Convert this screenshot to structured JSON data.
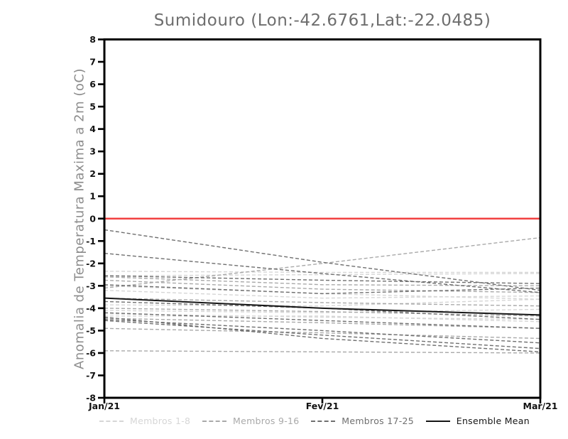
{
  "title": "Sumidouro (Lon:-42.6761,Lat:-22.0485)",
  "chart_data": {
    "type": "line",
    "title": "Sumidouro (Lon:-42.6761,Lat:-22.0485)",
    "xlabel": "",
    "ylabel": "Anomalia de Temperatura Maxima a 2m (oC)",
    "categories": [
      "Jan/21",
      "Fev/21",
      "Mar/21"
    ],
    "ylim": [
      -8,
      8
    ],
    "ytick_step": 1,
    "grid": "off",
    "legend_position": "bottom",
    "axis_color": "#000000",
    "tick_label_color": "#111111",
    "zero_line": {
      "value": 0,
      "color": "#f14040"
    },
    "groups": [
      {
        "name": "Membros 1-8",
        "color": "#d6d6d6",
        "style": "dashed",
        "members": [
          [
            -2.35,
            -2.4,
            -2.4
          ],
          [
            -2.55,
            -2.5,
            -2.45
          ],
          [
            -3.0,
            -3.35,
            -3.6
          ],
          [
            -3.2,
            -3.55,
            -3.45
          ],
          [
            -3.85,
            -3.9,
            -3.6
          ],
          [
            -4.1,
            -4.2,
            -4.05
          ],
          [
            -4.25,
            -4.4,
            -4.5
          ],
          [
            -4.35,
            -4.35,
            -4.6
          ]
        ]
      },
      {
        "name": "Membros 9-16",
        "color": "#a9a9a9",
        "style": "dashed",
        "members": [
          [
            -2.6,
            -2.95,
            -3.0
          ],
          [
            -2.75,
            -3.15,
            -3.3
          ],
          [
            -3.1,
            -2.0,
            -0.85
          ],
          [
            -3.55,
            -3.75,
            -3.9
          ],
          [
            -4.0,
            -4.15,
            -4.35
          ],
          [
            -4.45,
            -4.65,
            -4.9
          ],
          [
            -4.9,
            -5.1,
            -5.35
          ],
          [
            -5.9,
            -5.95,
            -6.0
          ]
        ]
      },
      {
        "name": "Membros 17-25",
        "color": "#6f6f6f",
        "style": "dashed",
        "members": [
          [
            -0.5,
            -1.95,
            -3.2
          ],
          [
            -1.55,
            -2.45,
            -3.3
          ],
          [
            -2.55,
            -2.75,
            -2.9
          ],
          [
            -2.95,
            -3.35,
            -3.1
          ],
          [
            -3.7,
            -4.0,
            -4.5
          ],
          [
            -4.2,
            -4.55,
            -4.9
          ],
          [
            -4.5,
            -5.0,
            -5.55
          ],
          [
            -4.55,
            -5.2,
            -5.8
          ],
          [
            -4.4,
            -5.35,
            -5.95
          ]
        ]
      },
      {
        "name": "Ensemble Mean",
        "color": "#161616",
        "style": "solid",
        "members": [
          [
            -3.55,
            -4.0,
            -4.3
          ]
        ]
      }
    ]
  }
}
